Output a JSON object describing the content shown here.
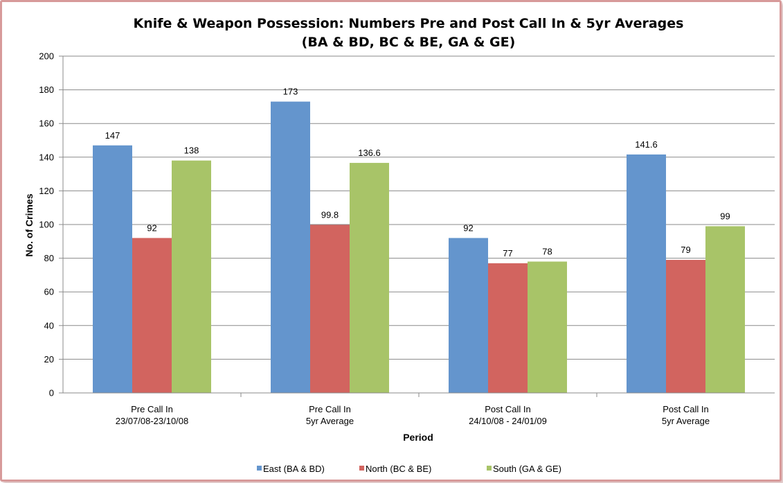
{
  "chart_data": {
    "type": "bar",
    "title_lines": [
      "Knife & Weapon Possession: Numbers Pre and Post Call In & 5yr Averages",
      "(BA & BD, BC & BE, GA & GE)"
    ],
    "xlabel": "Period",
    "ylabel": "No. of Crimes",
    "ylim": [
      0,
      200
    ],
    "yticks": [
      0,
      20,
      40,
      60,
      80,
      100,
      120,
      140,
      160,
      180,
      200
    ],
    "grid": true,
    "legend_position": "bottom",
    "categories": [
      [
        "Pre Call In",
        "23/07/08-23/10/08"
      ],
      [
        "Pre Call In",
        "5yr Average"
      ],
      [
        "Post Call In",
        "24/10/08 - 24/01/09"
      ],
      [
        "Post Call In",
        "5yr Average"
      ]
    ],
    "series": [
      {
        "name": "East (BA & BD)",
        "color": "#6495cd",
        "values": [
          147,
          173,
          92,
          141.6
        ],
        "labels": [
          "147",
          "173",
          "92",
          "141.6"
        ]
      },
      {
        "name": "North (BC & BE)",
        "color": "#d2645f",
        "values": [
          92,
          99.8,
          77,
          79
        ],
        "labels": [
          "92",
          "99.8",
          "77",
          "79"
        ]
      },
      {
        "name": "South (GA & GE)",
        "color": "#a8c468",
        "values": [
          138,
          136.6,
          78,
          99
        ],
        "labels": [
          "138",
          "136.6",
          "78",
          "99"
        ]
      }
    ]
  }
}
